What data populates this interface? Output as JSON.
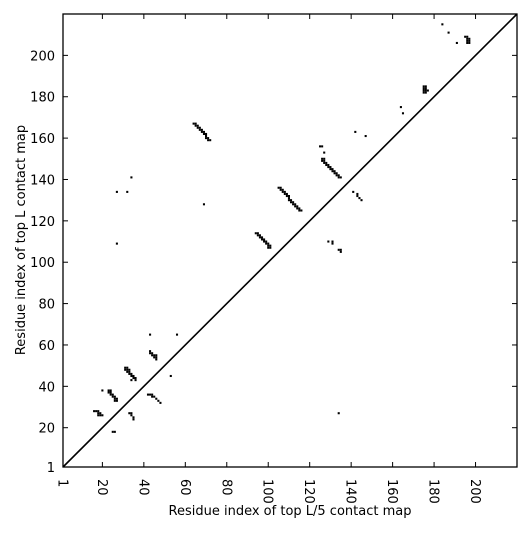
{
  "chart_data": {
    "type": "scatter",
    "title": "",
    "xlabel": "Residue index of top L/5 contact map",
    "ylabel": "Residue index of top L contact map",
    "xlim": [
      1,
      220
    ],
    "ylim": [
      1,
      220
    ],
    "xticks": [
      1,
      20,
      40,
      60,
      80,
      100,
      120,
      140,
      160,
      180,
      200
    ],
    "yticks": [
      1,
      20,
      40,
      60,
      80,
      100,
      120,
      140,
      160,
      180,
      200
    ],
    "diagonal": true,
    "grid": false,
    "marker": "square",
    "colors": {
      "points": "#000000",
      "diagonal": "#000000",
      "axes": "#000000",
      "background": "#ffffff"
    },
    "series": [
      {
        "role": "top-L-contacts-above-diagonal",
        "points": [
          [
            64,
            167
          ],
          [
            65,
            167
          ],
          [
            65,
            166
          ],
          [
            66,
            166
          ],
          [
            66,
            165
          ],
          [
            67,
            165
          ],
          [
            67,
            164
          ],
          [
            68,
            164
          ],
          [
            68,
            163
          ],
          [
            69,
            163
          ],
          [
            69,
            162
          ],
          [
            70,
            162
          ],
          [
            70,
            161
          ],
          [
            70,
            160
          ],
          [
            71,
            160
          ],
          [
            71,
            159
          ],
          [
            72,
            159
          ],
          [
            69,
            128
          ],
          [
            94,
            114
          ],
          [
            95,
            114
          ],
          [
            95,
            113
          ],
          [
            96,
            113
          ],
          [
            96,
            112
          ],
          [
            97,
            112
          ],
          [
            97,
            111
          ],
          [
            98,
            111
          ],
          [
            98,
            110
          ],
          [
            99,
            110
          ],
          [
            99,
            109
          ],
          [
            100,
            109
          ],
          [
            100,
            108
          ],
          [
            100,
            107
          ],
          [
            101,
            108
          ],
          [
            101,
            107
          ],
          [
            105,
            136
          ],
          [
            106,
            136
          ],
          [
            106,
            135
          ],
          [
            107,
            135
          ],
          [
            107,
            134
          ],
          [
            108,
            134
          ],
          [
            108,
            133
          ],
          [
            109,
            133
          ],
          [
            109,
            132
          ],
          [
            110,
            132
          ],
          [
            110,
            131
          ],
          [
            110,
            130
          ],
          [
            111,
            130
          ],
          [
            111,
            129
          ],
          [
            112,
            129
          ],
          [
            112,
            128
          ],
          [
            113,
            128
          ],
          [
            113,
            127
          ],
          [
            114,
            127
          ],
          [
            114,
            126
          ],
          [
            115,
            126
          ],
          [
            115,
            125
          ],
          [
            116,
            125
          ],
          [
            125,
            156
          ],
          [
            126,
            156
          ],
          [
            127,
            153
          ],
          [
            126,
            150
          ],
          [
            127,
            150
          ],
          [
            126,
            149
          ],
          [
            127,
            149
          ],
          [
            127,
            148
          ],
          [
            128,
            148
          ],
          [
            128,
            147
          ],
          [
            129,
            147
          ],
          [
            129,
            146
          ],
          [
            130,
            146
          ],
          [
            130,
            145
          ],
          [
            131,
            145
          ],
          [
            131,
            144
          ],
          [
            132,
            144
          ],
          [
            132,
            143
          ],
          [
            133,
            143
          ],
          [
            133,
            142
          ],
          [
            134,
            142
          ],
          [
            134,
            141
          ],
          [
            135,
            141
          ],
          [
            129,
            110
          ],
          [
            131,
            110
          ],
          [
            131,
            109
          ],
          [
            134,
            106
          ],
          [
            135,
            106
          ],
          [
            135,
            105
          ],
          [
            142,
            163
          ],
          [
            147,
            161
          ],
          [
            141,
            134
          ],
          [
            143,
            133
          ],
          [
            143,
            132
          ],
          [
            144,
            131
          ],
          [
            145,
            130
          ],
          [
            164,
            175
          ],
          [
            165,
            172
          ],
          [
            175,
            185
          ],
          [
            176,
            185
          ],
          [
            175,
            184
          ],
          [
            176,
            184
          ],
          [
            175,
            183
          ],
          [
            176,
            183
          ],
          [
            177,
            183
          ],
          [
            175,
            182
          ],
          [
            176,
            182
          ],
          [
            184,
            215
          ],
          [
            187,
            211
          ],
          [
            195,
            209
          ],
          [
            196,
            209
          ],
          [
            196,
            208
          ],
          [
            197,
            208
          ],
          [
            196,
            207
          ],
          [
            197,
            207
          ],
          [
            196,
            206
          ],
          [
            197,
            206
          ],
          [
            191,
            206
          ]
        ]
      },
      {
        "role": "top-L-over-5-contacts-below-diagonal",
        "points": [
          [
            16,
            28
          ],
          [
            17,
            28
          ],
          [
            18,
            28
          ],
          [
            18,
            27
          ],
          [
            19,
            27
          ],
          [
            18,
            26
          ],
          [
            19,
            26
          ],
          [
            20,
            26
          ],
          [
            20,
            38
          ],
          [
            23,
            38
          ],
          [
            24,
            38
          ],
          [
            23,
            37
          ],
          [
            24,
            37
          ],
          [
            24,
            36
          ],
          [
            25,
            36
          ],
          [
            25,
            35
          ],
          [
            26,
            35
          ],
          [
            26,
            34
          ],
          [
            27,
            34
          ],
          [
            26,
            33
          ],
          [
            27,
            33
          ],
          [
            25,
            18
          ],
          [
            26,
            18
          ],
          [
            27,
            134
          ],
          [
            27,
            109
          ],
          [
            32,
            134
          ],
          [
            34,
            141
          ],
          [
            31,
            49
          ],
          [
            32,
            49
          ],
          [
            31,
            48
          ],
          [
            32,
            48
          ],
          [
            33,
            48
          ],
          [
            32,
            47
          ],
          [
            33,
            47
          ],
          [
            33,
            46
          ],
          [
            34,
            46
          ],
          [
            34,
            45
          ],
          [
            35,
            45
          ],
          [
            35,
            44
          ],
          [
            36,
            44
          ],
          [
            34,
            43
          ],
          [
            36,
            43
          ],
          [
            33,
            27
          ],
          [
            34,
            27
          ],
          [
            34,
            26
          ],
          [
            35,
            25
          ],
          [
            35,
            24
          ],
          [
            43,
            65
          ],
          [
            43,
            57
          ],
          [
            43,
            56
          ],
          [
            44,
            56
          ],
          [
            44,
            55
          ],
          [
            45,
            55
          ],
          [
            46,
            55
          ],
          [
            45,
            54
          ],
          [
            46,
            54
          ],
          [
            46,
            53
          ],
          [
            42,
            36
          ],
          [
            43,
            36
          ],
          [
            44,
            36
          ],
          [
            44,
            35
          ],
          [
            45,
            35
          ],
          [
            46,
            34
          ],
          [
            47,
            33
          ],
          [
            48,
            32
          ],
          [
            53,
            45
          ],
          [
            56,
            65
          ],
          [
            134,
            27
          ]
        ]
      }
    ]
  }
}
